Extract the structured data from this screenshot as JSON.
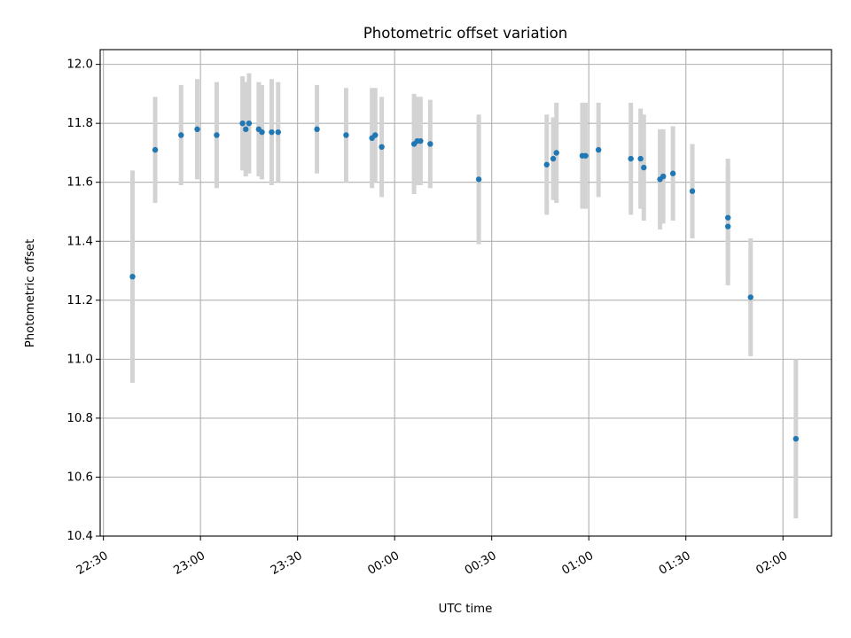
{
  "chart_data": {
    "type": "scatter",
    "title": "Photometric offset variation",
    "xlabel": "UTC time",
    "ylabel": "Photometric offset",
    "x_axis": {
      "kind": "time",
      "unit": "HH:MM (UTC)",
      "range": [
        "22:29",
        "02:15"
      ],
      "ticks": [
        "22:30",
        "23:00",
        "23:30",
        "00:00",
        "00:30",
        "01:00",
        "01:30",
        "02:00"
      ]
    },
    "y_axis": {
      "range": [
        10.4,
        12.05
      ],
      "ticks": [
        "10.4",
        "10.6",
        "10.8",
        "11.0",
        "11.2",
        "11.4",
        "11.6",
        "11.8",
        "12.0"
      ]
    },
    "grid": true,
    "legend": "none",
    "series": [
      {
        "marker_color": "#1f77b4",
        "errorbar_color": "#d3d3d3",
        "points": [
          {
            "time": "22:39",
            "y": 11.28,
            "err": 0.36
          },
          {
            "time": "22:46",
            "y": 11.71,
            "err": 0.18
          },
          {
            "time": "22:54",
            "y": 11.76,
            "err": 0.17
          },
          {
            "time": "22:59",
            "y": 11.78,
            "err": 0.17
          },
          {
            "time": "23:05",
            "y": 11.76,
            "err": 0.18
          },
          {
            "time": "23:13",
            "y": 11.8,
            "err": 0.16
          },
          {
            "time": "23:14",
            "y": 11.78,
            "err": 0.16
          },
          {
            "time": "23:15",
            "y": 11.8,
            "err": 0.17
          },
          {
            "time": "23:18",
            "y": 11.78,
            "err": 0.16
          },
          {
            "time": "23:19",
            "y": 11.77,
            "err": 0.16
          },
          {
            "time": "23:22",
            "y": 11.77,
            "err": 0.18
          },
          {
            "time": "23:24",
            "y": 11.77,
            "err": 0.17
          },
          {
            "time": "23:36",
            "y": 11.78,
            "err": 0.15
          },
          {
            "time": "23:45",
            "y": 11.76,
            "err": 0.16
          },
          {
            "time": "23:53",
            "y": 11.75,
            "err": 0.17
          },
          {
            "time": "23:54",
            "y": 11.76,
            "err": 0.16
          },
          {
            "time": "23:56",
            "y": 11.72,
            "err": 0.17
          },
          {
            "time": "00:06",
            "y": 11.73,
            "err": 0.17
          },
          {
            "time": "00:07",
            "y": 11.74,
            "err": 0.15
          },
          {
            "time": "00:08",
            "y": 11.74,
            "err": 0.15
          },
          {
            "time": "00:11",
            "y": 11.73,
            "err": 0.15
          },
          {
            "time": "00:26",
            "y": 11.61,
            "err": 0.22
          },
          {
            "time": "00:47",
            "y": 11.66,
            "err": 0.17
          },
          {
            "time": "00:49",
            "y": 11.68,
            "err": 0.14
          },
          {
            "time": "00:50",
            "y": 11.7,
            "err": 0.17
          },
          {
            "time": "00:58",
            "y": 11.69,
            "err": 0.18
          },
          {
            "time": "00:59",
            "y": 11.69,
            "err": 0.18
          },
          {
            "time": "01:03",
            "y": 11.71,
            "err": 0.16
          },
          {
            "time": "01:13",
            "y": 11.68,
            "err": 0.19
          },
          {
            "time": "01:16",
            "y": 11.68,
            "err": 0.17
          },
          {
            "time": "01:17",
            "y": 11.65,
            "err": 0.18
          },
          {
            "time": "01:22",
            "y": 11.61,
            "err": 0.17
          },
          {
            "time": "01:23",
            "y": 11.62,
            "err": 0.16
          },
          {
            "time": "01:26",
            "y": 11.63,
            "err": 0.16
          },
          {
            "time": "01:32",
            "y": 11.57,
            "err": 0.16
          },
          {
            "time": "01:43",
            "y": 11.48,
            "err": 0.2
          },
          {
            "time": "01:43",
            "y": 11.45,
            "err": 0.2
          },
          {
            "time": "01:50",
            "y": 11.21,
            "err": 0.2
          },
          {
            "time": "02:04",
            "y": 10.73,
            "err": 0.27
          }
        ]
      }
    ]
  }
}
